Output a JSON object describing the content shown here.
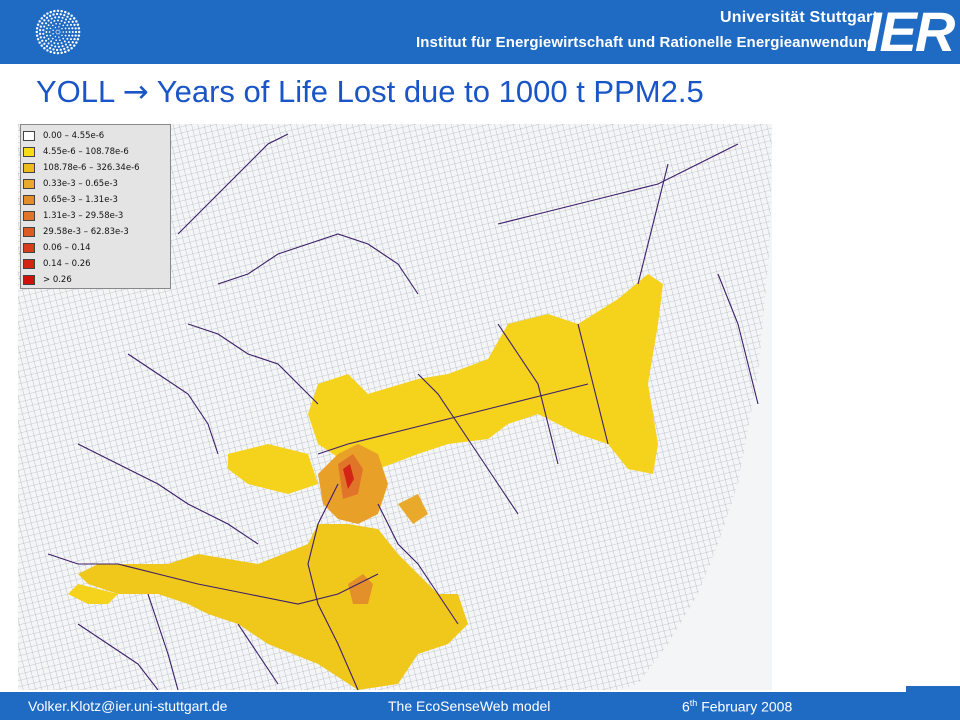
{
  "header": {
    "university": "Universität Stuttgart",
    "institute": "Institut für Energiewirtschaft und Rationelle Energieanwendung",
    "logo_text": "IER",
    "bg_color": "#1f6bc4"
  },
  "title": {
    "prefix": "YOLL",
    "arrow": "→",
    "text": "Years of Life Lost due to 1000 t PPM2.5",
    "color": "#1a55c7"
  },
  "legend": {
    "items": [
      {
        "label": "0.00 –  4.55e-6",
        "color": "#ffffff"
      },
      {
        "label": "4.55e-6 –  108.78e-6",
        "color": "#f5dd18"
      },
      {
        "label": "108.78e-6 – 326.34e-6",
        "color": "#ebbd1c"
      },
      {
        "label": "0.33e-3 – 0.65e-3",
        "color": "#e9a92a"
      },
      {
        "label": "0.65e-3 – 1.31e-3",
        "color": "#e38d2a"
      },
      {
        "label": "1.31e-3 – 29.58e-3",
        "color": "#e0752a"
      },
      {
        "label": "29.58e-3 – 62.83e-3",
        "color": "#dd5a24"
      },
      {
        "label": "0.06 – 0.14",
        "color": "#d83c1c"
      },
      {
        "label": "0.14 – 0.26",
        "color": "#d42414"
      },
      {
        "label": "> 0.26",
        "color": "#d0100c"
      }
    ]
  },
  "map": {
    "grid_color": "#9aa2a8",
    "border_color": "#3c1e6a"
  },
  "footer": {
    "email": "Volker.Klotz@ier.uni-stuttgart.de",
    "title": "The EcoSenseWeb model",
    "date_day": "6",
    "date_suffix": "th",
    "date_rest": " February 2008"
  }
}
